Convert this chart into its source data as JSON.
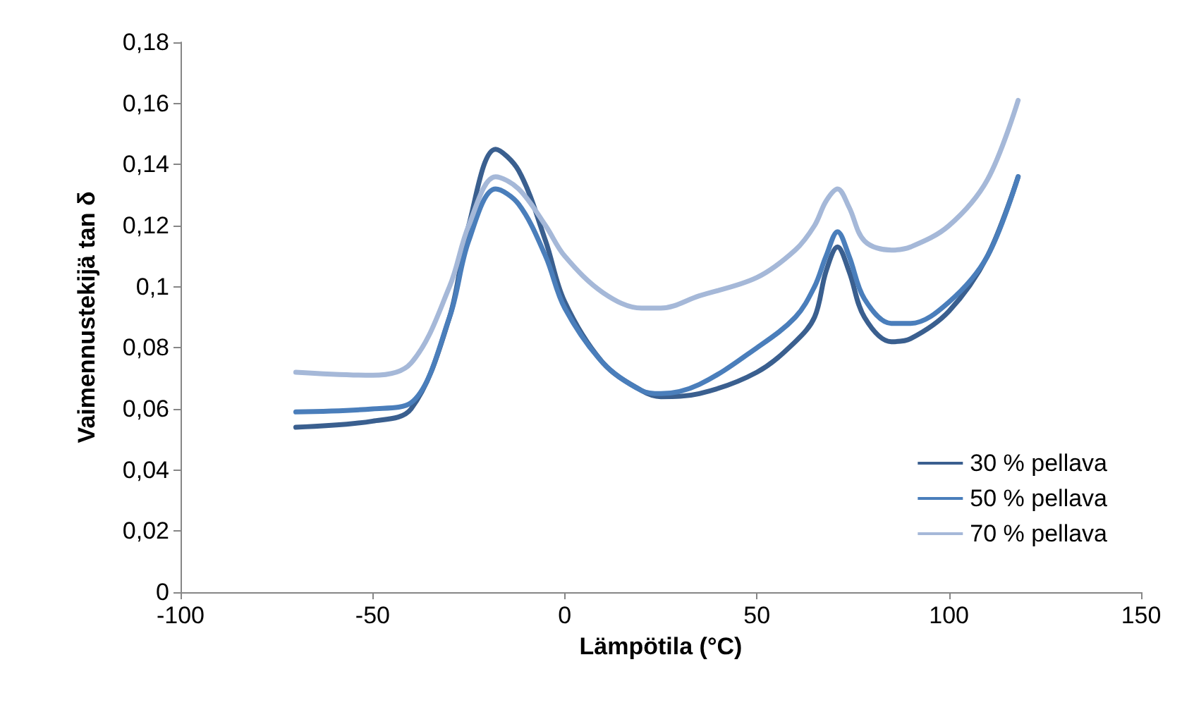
{
  "chart_data": {
    "type": "line",
    "xlabel": "Lämpötila (°C)",
    "ylabel": "Vaimennustekijä tan δ",
    "xlim": [
      -100,
      150
    ],
    "xticks": [
      -100,
      -50,
      0,
      50,
      100,
      150
    ],
    "ylim": [
      0,
      0.18
    ],
    "yticks": [
      {
        "value": 0,
        "label": "0"
      },
      {
        "value": 0.02,
        "label": "0,02"
      },
      {
        "value": 0.04,
        "label": "0,04"
      },
      {
        "value": 0.06,
        "label": "0,06"
      },
      {
        "value": 0.08,
        "label": "0,08"
      },
      {
        "value": 0.1,
        "label": "0,1"
      },
      {
        "value": 0.12,
        "label": "0,12"
      },
      {
        "value": 0.14,
        "label": "0,14"
      },
      {
        "value": 0.16,
        "label": "0,16"
      },
      {
        "value": 0.18,
        "label": "0,18"
      }
    ],
    "grid": false,
    "legend": "bottom right",
    "marker": "none",
    "line_style": "solid",
    "x": [
      -70,
      -50,
      -40,
      -30,
      -25,
      -18,
      -12,
      -5,
      0,
      10,
      20,
      25,
      35,
      50,
      60,
      65,
      68,
      71,
      74,
      78,
      85,
      90,
      100,
      110,
      118
    ],
    "series": [
      {
        "name": "30 % pellava",
        "color": "#3a5f8f",
        "values": [
          0.054,
          0.056,
          0.06,
          0.09,
          0.12,
          0.145,
          0.138,
          0.115,
          0.095,
          0.075,
          0.066,
          0.064,
          0.065,
          0.072,
          0.082,
          0.09,
          0.105,
          0.113,
          0.105,
          0.09,
          0.082,
          0.083,
          0.092,
          0.11,
          0.136
        ]
      },
      {
        "name": "50 % pellava",
        "color": "#4a7ebb",
        "values": [
          0.059,
          0.06,
          0.062,
          0.09,
          0.115,
          0.132,
          0.127,
          0.11,
          0.093,
          0.075,
          0.066,
          0.065,
          0.068,
          0.08,
          0.09,
          0.1,
          0.11,
          0.118,
          0.11,
          0.096,
          0.088,
          0.088,
          0.095,
          0.11,
          0.136
        ]
      },
      {
        "name": "70 % pellava",
        "color": "#a5b8d8",
        "values": [
          0.072,
          0.071,
          0.075,
          0.1,
          0.12,
          0.136,
          0.132,
          0.12,
          0.11,
          0.098,
          0.093,
          0.093,
          0.097,
          0.103,
          0.112,
          0.12,
          0.128,
          0.132,
          0.126,
          0.115,
          0.112,
          0.113,
          0.12,
          0.135,
          0.161
        ]
      }
    ]
  }
}
